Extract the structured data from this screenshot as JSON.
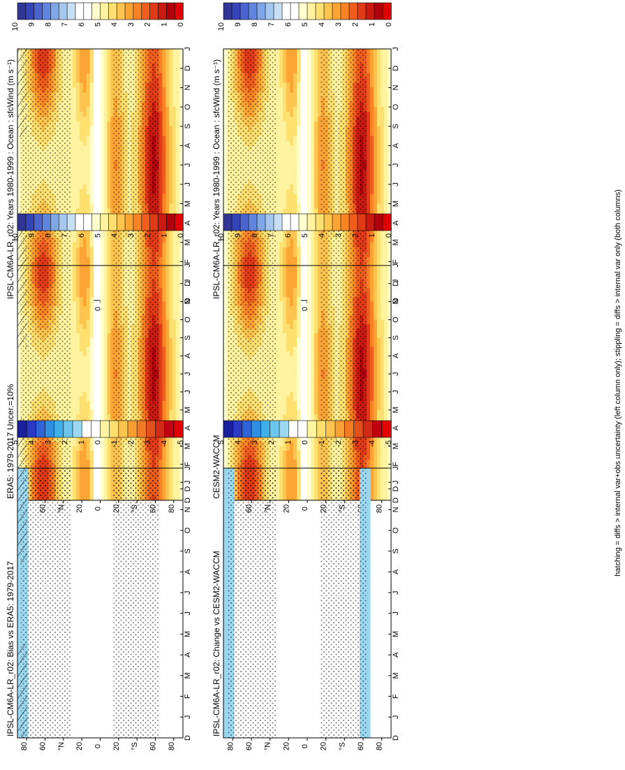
{
  "footnote": "hatching = diffs > internal var+obs uncertainty (left column only); stippling = diffs > internal var only (both columns)",
  "colors": {
    "absolute": [
      "#313695",
      "#3545b8",
      "#4a63cf",
      "#5f85dd",
      "#7fa6e6",
      "#a4c6ef",
      "#c7dff5",
      "#ffffff",
      "#ffffff",
      "#ffffd0",
      "#fff3a0",
      "#fee070",
      "#fdc54f",
      "#fca534",
      "#f98325",
      "#f05e1d",
      "#e03a17",
      "#c81a10",
      "#b0000c",
      "#e00000"
    ],
    "diff": [
      "#1a1f9c",
      "#2a3ac4",
      "#2f63d8",
      "#2f8fe3",
      "#3fb0ea",
      "#6cc6ee",
      "#9bd8f1",
      "#ffffff",
      "#ffffff",
      "#fff4a0",
      "#fde070",
      "#fdc450",
      "#f9a035",
      "#f17a25",
      "#e2511c",
      "#d22a14",
      "#c00010",
      "#e00000"
    ]
  },
  "chart_data": [
    {
      "type": "heatmap",
      "panel": "row1-left",
      "title": "IPSL-CM6A-LR_r02: Years 1980-1999 : Ocean : sfcWind (m s⁻¹)",
      "x": [
        "D",
        "J",
        "F",
        "M",
        "A",
        "M",
        "J",
        "J",
        "A",
        "S",
        "O",
        "N",
        "D",
        "J"
      ],
      "y_ticks": [
        "80",
        "60",
        "°N",
        "20",
        "0",
        "20",
        "°S",
        "60",
        "80"
      ],
      "colorbar": {
        "ticks": [
          "10",
          "9",
          "8",
          "7",
          "6",
          "5",
          "4",
          "3",
          "2",
          "1",
          "0"
        ],
        "range": [
          0,
          10
        ]
      },
      "hatching": true,
      "stippling": true
    },
    {
      "type": "heatmap",
      "panel": "row1-right",
      "title": "IPSL-CM6A-LR_r02: Years 1980-1999 : Ocean : sfcWind (m s⁻¹)",
      "x": [
        "D",
        "J",
        "F",
        "M",
        "A",
        "M",
        "J",
        "J",
        "A",
        "S",
        "O",
        "N",
        "D",
        "J"
      ],
      "y_ticks": [
        "80",
        "60",
        "°N",
        "20",
        "0",
        "20",
        "°S",
        "60",
        "80"
      ],
      "colorbar": {
        "ticks": [
          "10",
          "9",
          "8",
          "7",
          "6",
          "5",
          "4",
          "3",
          "2",
          "1",
          "0"
        ],
        "range": [
          0,
          10
        ]
      },
      "hatching": false,
      "stippling": true
    },
    {
      "type": "heatmap",
      "panel": "row2-left",
      "title": "ERA5: 1979-2017 Uncer.=10%",
      "x": [
        "D",
        "J",
        "F",
        "M",
        "A",
        "M",
        "J",
        "J",
        "A",
        "S",
        "O",
        "N",
        "D",
        "J"
      ],
      "y_ticks": [
        "80",
        "60",
        "°N",
        "20",
        "0",
        "20",
        "°S",
        "60",
        "80"
      ],
      "colorbar": {
        "ticks": [
          "10",
          "9",
          "8",
          "7",
          "6",
          "5",
          "4",
          "3",
          "2",
          "1",
          "0"
        ],
        "range": [
          0,
          10
        ]
      },
      "hatching": true,
      "stippling": true
    },
    {
      "type": "heatmap",
      "panel": "row2-right",
      "title": "CESM2-WACCM",
      "x": [
        "D",
        "J",
        "F",
        "M",
        "A",
        "M",
        "J",
        "J",
        "A",
        "S",
        "O",
        "N",
        "D",
        "J"
      ],
      "y_ticks": [
        "80",
        "60",
        "°N",
        "20",
        "0",
        "20",
        "°S",
        "60",
        "80"
      ],
      "colorbar": {
        "ticks": [
          "10",
          "9",
          "8",
          "7",
          "6",
          "5",
          "4",
          "3",
          "2",
          "1",
          "0"
        ],
        "range": [
          0,
          10
        ]
      },
      "hatching": false,
      "stippling": true
    },
    {
      "type": "heatmap",
      "panel": "row3-left",
      "title": "IPSL-CM6A-LR_r02: Bias vs ERA5: 1979-2017",
      "x": [
        "D",
        "J",
        "F",
        "M",
        "A",
        "M",
        "J",
        "J",
        "A",
        "S",
        "O",
        "N",
        "D",
        "J"
      ],
      "y_ticks": [
        "80",
        "60",
        "°N",
        "20",
        "0",
        "20",
        "°S",
        "60",
        "80"
      ],
      "colorbar": {
        "ticks": [
          "5",
          "4",
          "3",
          "2",
          "1",
          "0",
          "-1",
          "-2",
          "-3",
          "-4",
          "-5"
        ],
        "range": [
          -5,
          5
        ]
      },
      "hatching": true,
      "stippling": true
    },
    {
      "type": "heatmap",
      "panel": "row3-right",
      "title": "IPSL-CM6A-LR_r02: Change vs CESM2-WACCM",
      "x": [
        "D",
        "J",
        "F",
        "M",
        "A",
        "M",
        "J",
        "J",
        "A",
        "S",
        "O",
        "N",
        "D",
        "J"
      ],
      "y_ticks": [
        "80",
        "60",
        "°N",
        "20",
        "0",
        "20",
        "°S",
        "60",
        "80"
      ],
      "colorbar": {
        "ticks": [
          "5",
          "4",
          "3",
          "2",
          "1",
          "0",
          "-1",
          "-2",
          "-3",
          "-4",
          "-5"
        ],
        "range": [
          -5,
          5
        ]
      },
      "hatching": false,
      "stippling": true
    }
  ]
}
